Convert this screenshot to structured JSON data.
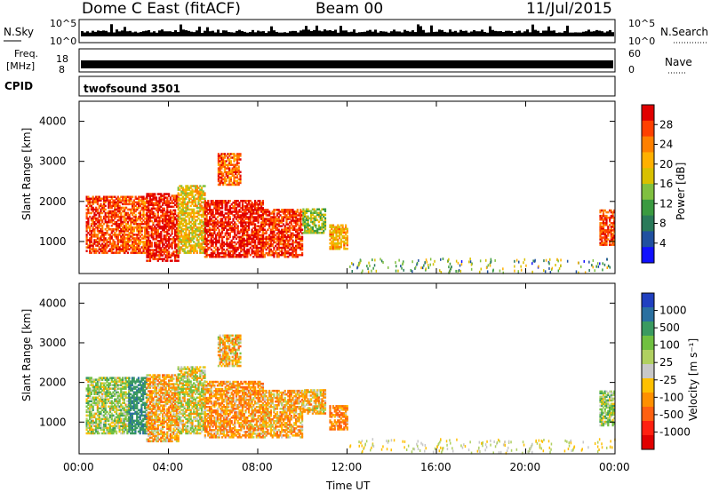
{
  "header": {
    "station": "Dome C East (fitACF)",
    "beam": "Beam 00",
    "date": "11/Jul/2015"
  },
  "noise_panel": {
    "left_label": "N.Sky",
    "right_label": "N.Search",
    "ticks_left": [
      "10^5",
      "10^0"
    ],
    "ticks_right": [
      "10^5",
      "10^0"
    ],
    "right_line_color": "#000000"
  },
  "freq_panel": {
    "left_label_1": "Freq.",
    "left_label_2": "[MHz]",
    "right_label": "Nave",
    "ticks_left": [
      "18",
      "8"
    ],
    "ticks_right": [
      "60",
      "0"
    ]
  },
  "cpid_panel": {
    "label": "CPID",
    "program": "twofsound 3501"
  },
  "time_axis": {
    "title": "Time UT",
    "ticks": [
      "00:00",
      "04:00",
      "08:00",
      "12:00",
      "16:00",
      "20:00",
      "00:00"
    ]
  },
  "power_panel": {
    "ylabel": "Slant Range [km]",
    "yticks": [
      "4000",
      "3000",
      "2000",
      "1000"
    ],
    "colorbar_label": "Power [dB]",
    "colorbar_ticks": [
      "28",
      "24",
      "20",
      "16",
      "12",
      "8",
      "4"
    ],
    "colorbar_colors": [
      "#e00000",
      "#ff4000",
      "#ff8000",
      "#ffb000",
      "#d8c000",
      "#80c040",
      "#3a9a40",
      "#2a7a5a",
      "#2050a0",
      "#1010ff"
    ]
  },
  "velocity_panel": {
    "ylabel": "Slant Range [km]",
    "yticks": [
      "4000",
      "3000",
      "2000",
      "1000"
    ],
    "colorbar_label": "Velocity [m s⁻¹]",
    "colorbar_ticks": [
      "1000",
      "500",
      "100",
      "25",
      "-25",
      "-100",
      "-500",
      "-1000"
    ],
    "colorbar_colors": [
      "#2040c0",
      "#2a70a0",
      "#3a9a60",
      "#70c040",
      "#b0d060",
      "#c8c8c8",
      "#ffc000",
      "#ff9000",
      "#ff6010",
      "#ff2010",
      "#e00000"
    ]
  },
  "chart_data": {
    "type": "heatmap",
    "x_range_hours": [
      0,
      24
    ],
    "y_range_km": [
      200,
      4500
    ],
    "power_regions": [
      {
        "t": [
          0.3,
          2.0
        ],
        "r": [
          700,
          2100
        ],
        "dB": 26
      },
      {
        "t": [
          2.0,
          3.0
        ],
        "r": [
          700,
          2100
        ],
        "dB": 24
      },
      {
        "t": [
          3.0,
          4.4
        ],
        "r": [
          500,
          2200
        ],
        "dB": 28
      },
      {
        "t": [
          4.4,
          5.6
        ],
        "r": [
          700,
          2400
        ],
        "dB": 18
      },
      {
        "t": [
          5.6,
          8.2
        ],
        "r": [
          600,
          2000
        ],
        "dB": 28
      },
      {
        "t": [
          8.2,
          10.0
        ],
        "r": [
          600,
          1800
        ],
        "dB": 26
      },
      {
        "t": [
          10.0,
          11.0
        ],
        "r": [
          1200,
          1800
        ],
        "dB": 14
      },
      {
        "t": [
          11.2,
          12.0
        ],
        "r": [
          800,
          1400
        ],
        "dB": 20
      },
      {
        "t": [
          6.2,
          7.2
        ],
        "r": [
          2400,
          3200
        ],
        "dB": 24
      },
      {
        "t": [
          23.3,
          24.0
        ],
        "r": [
          900,
          1800
        ],
        "dB": 26
      }
    ],
    "velocity_regions": [
      {
        "t": [
          0.3,
          2.2
        ],
        "r": [
          700,
          2100
        ],
        "v": 120
      },
      {
        "t": [
          2.2,
          3.0
        ],
        "r": [
          700,
          2100
        ],
        "v": 600
      },
      {
        "t": [
          3.0,
          4.4
        ],
        "r": [
          500,
          2200
        ],
        "v": -150
      },
      {
        "t": [
          4.4,
          5.6
        ],
        "r": [
          700,
          2400
        ],
        "v": 50
      },
      {
        "t": [
          5.6,
          8.2
        ],
        "r": [
          600,
          2000
        ],
        "v": -200
      },
      {
        "t": [
          8.2,
          10.0
        ],
        "r": [
          600,
          1800
        ],
        "v": -150
      },
      {
        "t": [
          10.0,
          11.0
        ],
        "r": [
          1200,
          1800
        ],
        "v": -100
      },
      {
        "t": [
          11.2,
          12.0
        ],
        "r": [
          800,
          1400
        ],
        "v": -250
      },
      {
        "t": [
          6.2,
          7.2
        ],
        "r": [
          2400,
          3200
        ],
        "v": -100
      },
      {
        "t": [
          23.3,
          24.0
        ],
        "r": [
          900,
          1800
        ],
        "v": 150
      }
    ]
  }
}
